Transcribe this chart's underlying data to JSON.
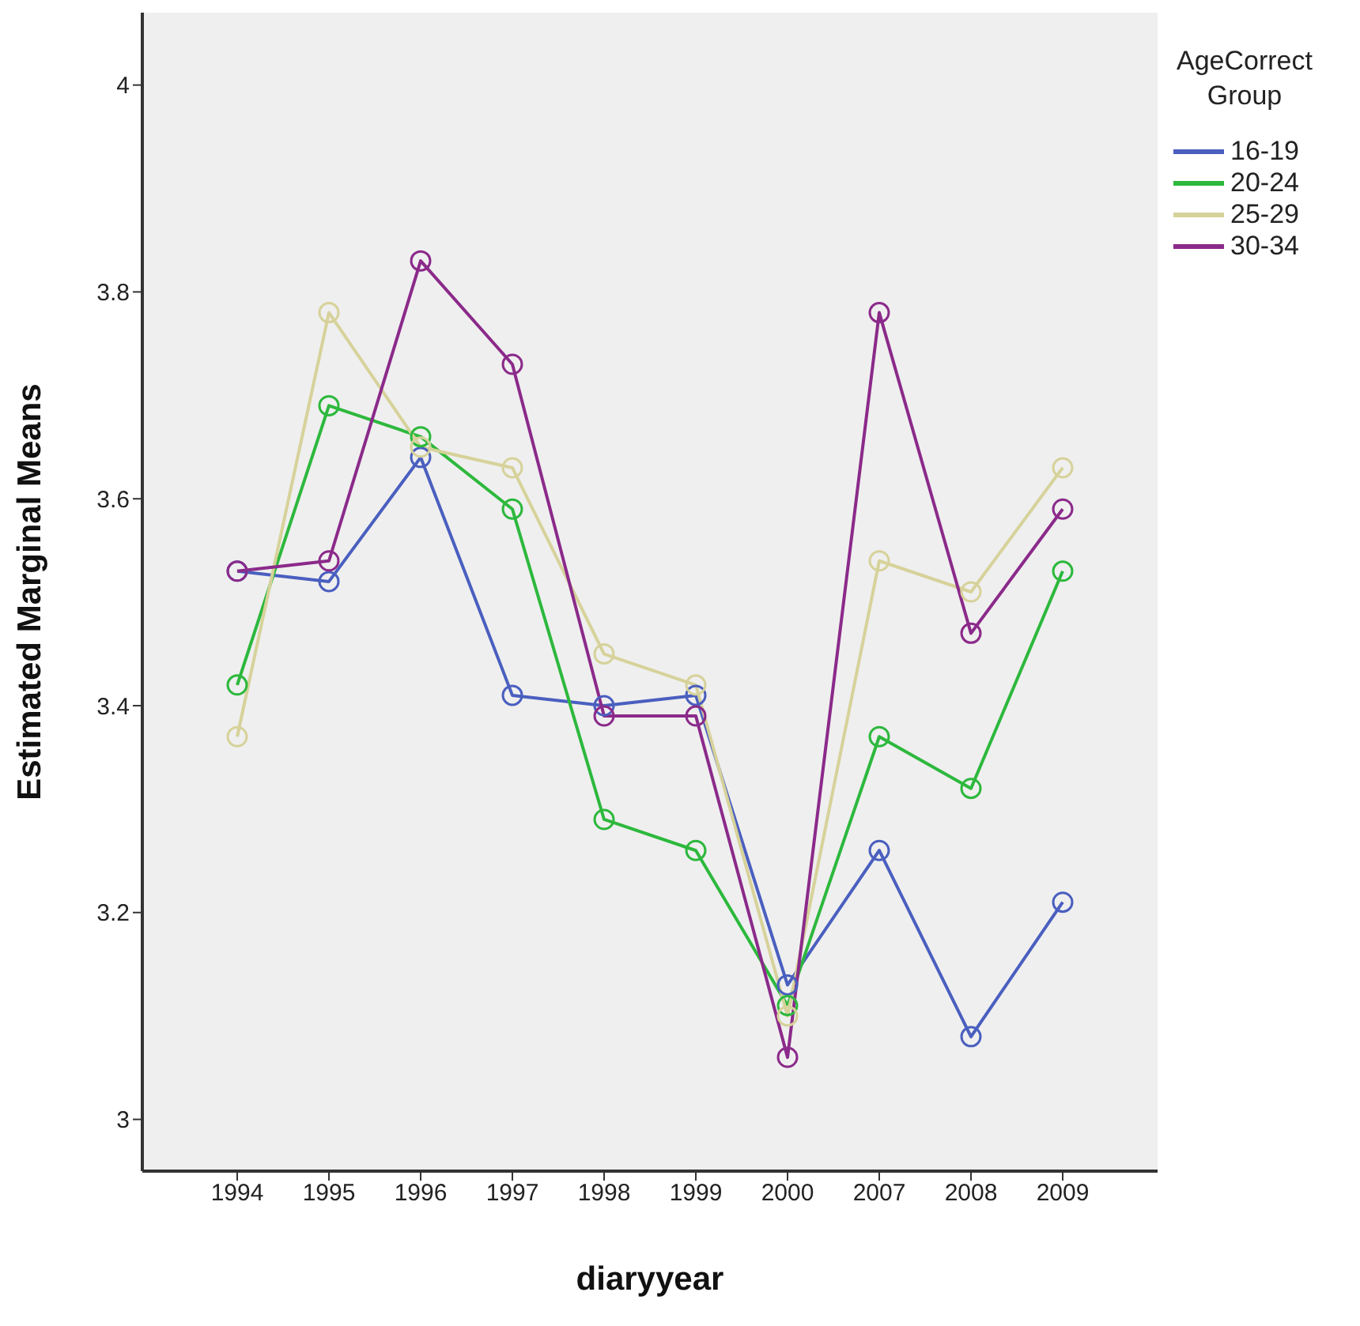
{
  "chart_data": {
    "type": "line",
    "xlabel": "diaryyear",
    "ylabel": "Estimated Marginal Means",
    "legend_title": "AgeCorrect Group",
    "categories": [
      "1994",
      "1995",
      "1996",
      "1997",
      "1998",
      "1999",
      "2000",
      "2007",
      "2008",
      "2009"
    ],
    "series": [
      {
        "name": "16-19",
        "color": "#4a5fbf",
        "values": [
          3.53,
          3.52,
          3.64,
          3.41,
          3.4,
          3.41,
          3.13,
          3.26,
          3.08,
          3.21
        ]
      },
      {
        "name": "20-24",
        "color": "#2db83d",
        "values": [
          3.42,
          3.69,
          3.66,
          3.59,
          3.29,
          3.26,
          3.11,
          3.37,
          3.32,
          3.53
        ]
      },
      {
        "name": "25-29",
        "color": "#d6d29a",
        "values": [
          3.37,
          3.78,
          3.65,
          3.63,
          3.45,
          3.42,
          3.1,
          3.54,
          3.51,
          3.63
        ]
      },
      {
        "name": "30-34",
        "color": "#8b2a8a",
        "values": [
          3.53,
          3.54,
          3.83,
          3.73,
          3.39,
          3.39,
          3.06,
          3.78,
          3.47,
          3.59
        ]
      }
    ],
    "ylim": [
      2.95,
      4.07
    ],
    "yticks": [
      3,
      3.2,
      3.4,
      3.6,
      3.8,
      4
    ],
    "grid": false,
    "legend": "right",
    "marker": "circle",
    "line_style": "solid"
  }
}
